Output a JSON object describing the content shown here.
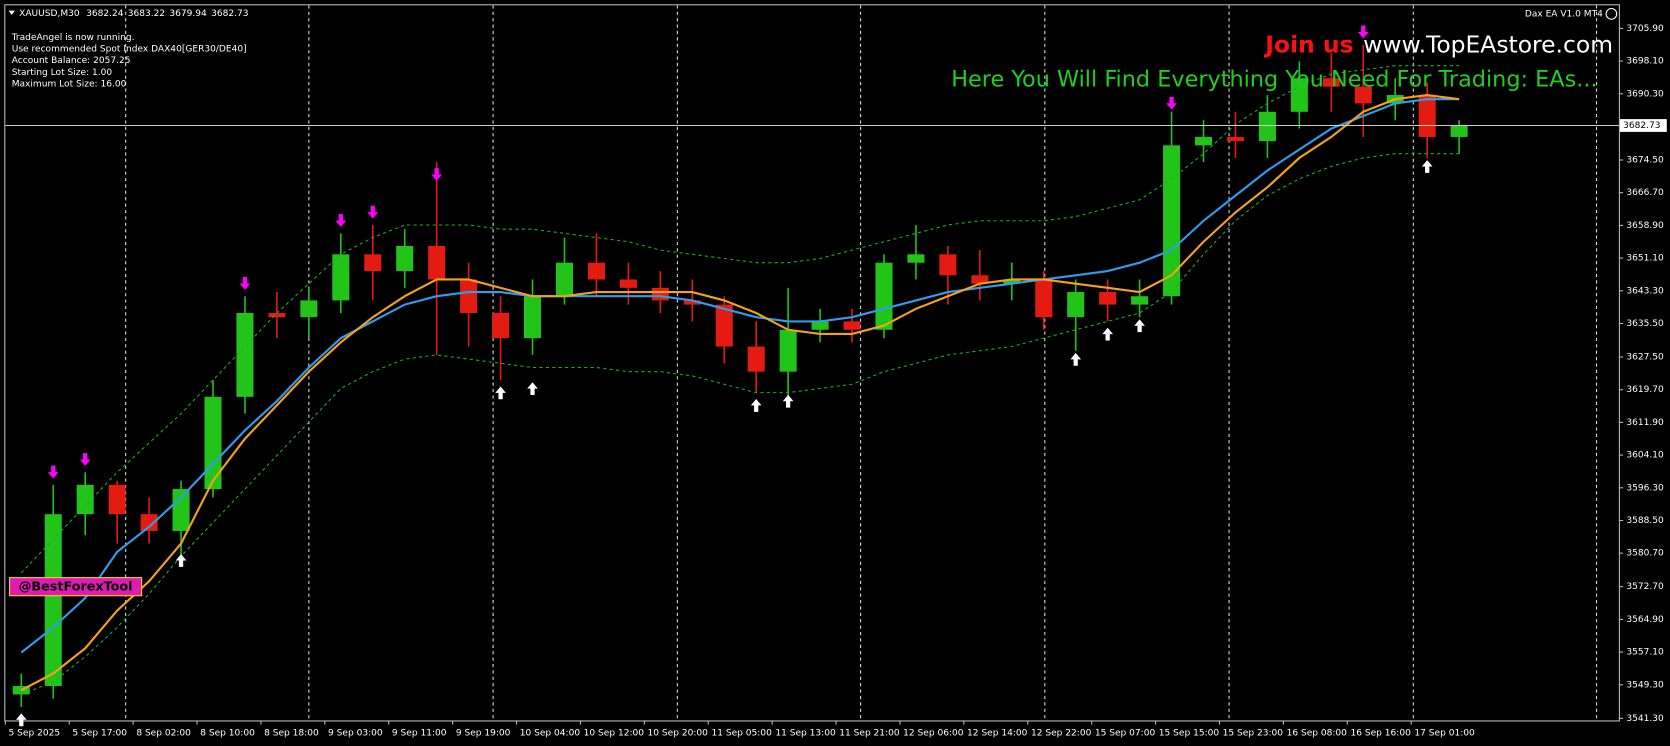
{
  "chart_data": {
    "type": "candlestick",
    "header": {
      "symbol": "XAUUSD,M30",
      "ohlc": [
        3682.24,
        3683.22,
        3679.94,
        3682.73
      ]
    },
    "info": [
      "TradeAngel is now running.",
      "Use recommended Spot Index DAX40[GER30/DE40]",
      "Account Balance: 2057.25",
      "Starting Lot Size: 1.00",
      "Maximum Lot Size: 16.00"
    ],
    "ea_label": "Dax EA V1.0 MT4",
    "promo_join": "Join us",
    "promo_site": "www.TopEAstore.com",
    "promo_text": "Here You Will Find Everything You Need For Trading: EAs...",
    "badge": "@BestForexTool",
    "current_price": {
      "value": 3682.73,
      "label": "3682.73"
    },
    "up_color": "#22c41a",
    "down_color": "#e31b12",
    "categories": [
      "5 Sep 2025",
      null,
      "5 Sep 17:00",
      null,
      "8 Sep 02:00",
      null,
      "8 Sep 10:00",
      null,
      "8 Sep 18:00",
      null,
      "9 Sep 03:00",
      null,
      "9 Sep 11:00",
      null,
      "9 Sep 19:00",
      null,
      "10 Sep 04:00",
      null,
      "10 Sep 12:00",
      null,
      "10 Sep 20:00",
      null,
      "11 Sep 05:00",
      null,
      "11 Sep 13:00",
      null,
      "11 Sep 21:00",
      null,
      "12 Sep 06:00",
      null,
      "12 Sep 14:00",
      null,
      "12 Sep 22:00",
      null,
      "15 Sep 07:00",
      null,
      "15 Sep 15:00",
      null,
      "15 Sep 23:00",
      null,
      "16 Sep 08:00",
      null,
      "16 Sep 16:00",
      null,
      "17 Sep 01:00",
      null
    ],
    "open": [
      3547,
      3549,
      3590,
      3597,
      3590,
      3586,
      3596,
      3618,
      3638,
      3637,
      3641,
      3652,
      3648,
      3654,
      3646,
      3638,
      3632,
      3642,
      3650,
      3646,
      3644,
      3641,
      3640,
      3630,
      3624,
      3634,
      3636,
      3634,
      3650,
      3652,
      3647,
      3645,
      3646,
      3637,
      3643,
      3640,
      3642,
      3678,
      3680,
      3679,
      3686,
      3694,
      3692,
      3688,
      3690,
      3680
    ],
    "high": [
      3552,
      3597,
      3600,
      3598,
      3594,
      3598,
      3622,
      3642,
      3643,
      3644,
      3657,
      3659,
      3658,
      3674,
      3650,
      3642,
      3646,
      3656,
      3657,
      3650,
      3648,
      3646,
      3642,
      3636,
      3644,
      3639,
      3639,
      3652,
      3659,
      3654,
      3653,
      3650,
      3648,
      3646,
      3646,
      3646,
      3686,
      3684,
      3686,
      3690,
      3698,
      3700,
      3702,
      3694,
      3693,
      3684
    ],
    "low": [
      3544,
      3546,
      3585,
      3583,
      3583,
      3580,
      3594,
      3614,
      3632,
      3632,
      3638,
      3641,
      3644,
      3628,
      3630,
      3622,
      3628,
      3640,
      3642,
      3640,
      3638,
      3636,
      3626,
      3619,
      3618,
      3631,
      3631,
      3632,
      3646,
      3640,
      3641,
      3641,
      3634,
      3629,
      3636,
      3637,
      3640,
      3674,
      3675,
      3675,
      3682,
      3686,
      3680,
      3684,
      3675,
      3676
    ],
    "close": [
      3549,
      3590,
      3597,
      3590,
      3586,
      3596,
      3618,
      3638,
      3637,
      3641,
      3652,
      3648,
      3654,
      3646,
      3638,
      3632,
      3642,
      3650,
      3646,
      3644,
      3641,
      3640,
      3630,
      3624,
      3634,
      3636,
      3634,
      3650,
      3652,
      3647,
      3645,
      3646,
      3637,
      3643,
      3640,
      3642,
      3678,
      3680,
      3679,
      3686,
      3694,
      3692,
      3688,
      3690,
      3680,
      3682.73
    ],
    "lines": [
      {
        "color": "#2f9cf0",
        "width": 2,
        "dash": false,
        "values": [
          3557,
          3563,
          3570,
          3581,
          3587,
          3594,
          3602,
          3610,
          3617,
          3625,
          3632,
          3636,
          3640,
          3642,
          3643,
          3643,
          3642,
          3642,
          3642,
          3642,
          3642,
          3641,
          3639,
          3637,
          3636,
          3636,
          3637,
          3639,
          3641,
          3643,
          3644,
          3645,
          3646,
          3647,
          3648,
          3650,
          3653,
          3660,
          3666,
          3672,
          3677,
          3682,
          3685,
          3688,
          3689,
          3689
        ]
      },
      {
        "color": "#f5a21b",
        "width": 2,
        "dash": false,
        "values": [
          3548,
          3552,
          3558,
          3567,
          3574,
          3583,
          3598,
          3608,
          3616,
          3624,
          3631,
          3637,
          3642,
          3646,
          3646,
          3644,
          3642,
          3642,
          3643,
          3643,
          3643,
          3643,
          3641,
          3638,
          3634,
          3633,
          3633,
          3635,
          3639,
          3642,
          3645,
          3646,
          3646,
          3645,
          3644,
          3643,
          3647,
          3655,
          3662,
          3668,
          3675,
          3680,
          3686,
          3689,
          3690,
          3689
        ]
      },
      {
        "color": "#1fb01f",
        "width": 1,
        "dash": true,
        "values": [
          3576,
          3584,
          3592,
          3600,
          3607,
          3614,
          3622,
          3630,
          3638,
          3645,
          3652,
          3656,
          3659,
          3659,
          3659,
          3658,
          3658,
          3657,
          3656,
          3655,
          3653,
          3652,
          3651,
          3650,
          3650,
          3651,
          3653,
          3655,
          3657,
          3659,
          3660,
          3660,
          3660,
          3661,
          3663,
          3665,
          3670,
          3676,
          3683,
          3688,
          3692,
          3695,
          3696,
          3697,
          3697,
          3697
        ]
      },
      {
        "color": "#1fb01f",
        "width": 1,
        "dash": true,
        "values": [
          3547,
          3550,
          3556,
          3563,
          3571,
          3580,
          3588,
          3596,
          3604,
          3612,
          3620,
          3624,
          3627,
          3628,
          3627,
          3626,
          3625,
          3625,
          3625,
          3624,
          3624,
          3623,
          3621,
          3619,
          3619,
          3620,
          3621,
          3624,
          3626,
          3628,
          3629,
          3630,
          3632,
          3634,
          3636,
          3638,
          3643,
          3652,
          3660,
          3666,
          3670,
          3673,
          3675,
          3676,
          3676,
          3676
        ]
      }
    ],
    "buy_signals": [
      3544,
      null,
      null,
      null,
      null,
      3582,
      null,
      null,
      null,
      null,
      null,
      null,
      null,
      null,
      null,
      3622,
      3623,
      null,
      null,
      null,
      null,
      null,
      null,
      3619,
      3620,
      null,
      null,
      null,
      null,
      null,
      null,
      null,
      null,
      3630,
      3636,
      3638,
      null,
      null,
      null,
      null,
      null,
      null,
      null,
      null,
      3676,
      null
    ],
    "sell_signals": [
      null,
      3597,
      3600,
      null,
      null,
      null,
      null,
      3642,
      null,
      null,
      3657,
      3659,
      null,
      3668,
      null,
      null,
      null,
      null,
      null,
      null,
      null,
      null,
      null,
      null,
      null,
      null,
      null,
      null,
      null,
      null,
      null,
      null,
      null,
      null,
      null,
      null,
      3685,
      null,
      null,
      null,
      null,
      null,
      3702,
      null,
      null,
      null
    ],
    "ylim": [
      3540.8,
      3711.4
    ],
    "yticks": [
      {
        "value": 3705.9,
        "label": "3705.90"
      },
      {
        "value": 3698.1,
        "label": "3698.10"
      },
      {
        "value": 3690.3,
        "label": "3690.30"
      },
      {
        "value": 3674.5,
        "label": "3674.50"
      },
      {
        "value": 3666.7,
        "label": "3666.70"
      },
      {
        "value": 3658.9,
        "label": "3658.90"
      },
      {
        "value": 3651.1,
        "label": "3651.10"
      },
      {
        "value": 3643.3,
        "label": "3643.30"
      },
      {
        "value": 3635.5,
        "label": "3635.50"
      },
      {
        "value": 3627.5,
        "label": "3627.50"
      },
      {
        "value": 3619.7,
        "label": "3619.70"
      },
      {
        "value": 3611.9,
        "label": "3611.90"
      },
      {
        "value": 3604.1,
        "label": "3604.10"
      },
      {
        "value": 3596.3,
        "label": "3596.30"
      },
      {
        "value": 3588.5,
        "label": "3588.50"
      },
      {
        "value": 3580.7,
        "label": "3580.70"
      },
      {
        "value": 3572.7,
        "label": "3572.70"
      },
      {
        "value": 3564.9,
        "label": "3564.90"
      },
      {
        "value": 3557.1,
        "label": "3557.10"
      },
      {
        "value": 3549.3,
        "label": "3549.30"
      },
      {
        "value": 3541.3,
        "label": "3541.30"
      }
    ]
  }
}
